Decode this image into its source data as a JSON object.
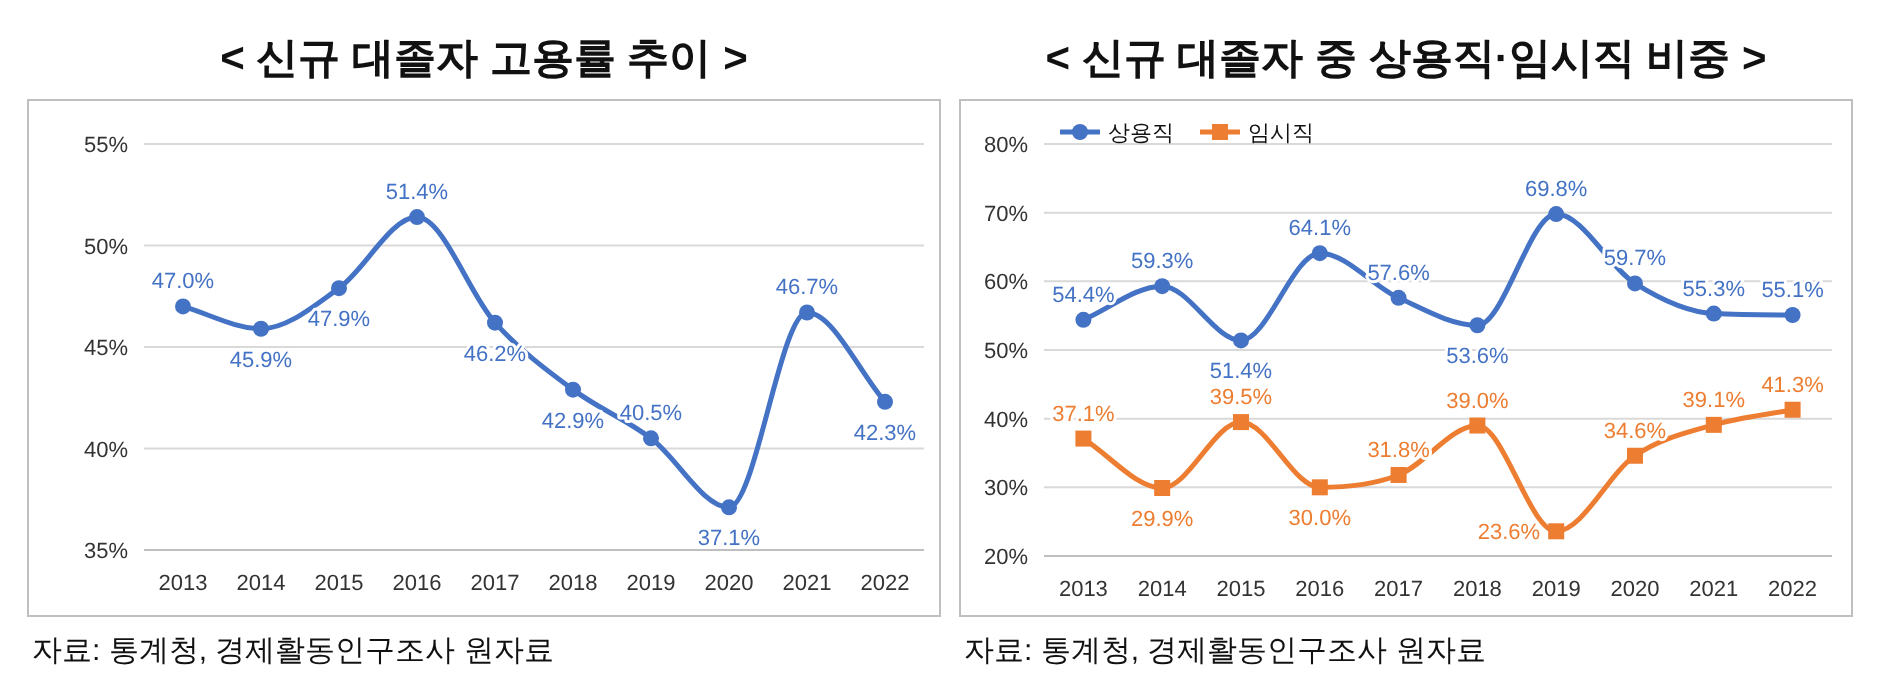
{
  "chart_data": [
    {
      "type": "line",
      "title": "< 신규 대졸자 고용률 추이 >",
      "categories": [
        "2013",
        "2014",
        "2015",
        "2016",
        "2017",
        "2018",
        "2019",
        "2020",
        "2021",
        "2022"
      ],
      "series": [
        {
          "color": "#4472c4",
          "values": [
            47.0,
            45.9,
            47.9,
            51.4,
            46.2,
            42.9,
            40.5,
            37.1,
            46.7,
            42.3
          ],
          "value_labels": [
            "47.0%",
            "45.9%",
            "47.9%",
            "51.4%",
            "46.2%",
            "42.9%",
            "40.5%",
            "37.1%",
            "46.7%",
            "42.3%"
          ]
        }
      ],
      "ylim": [
        35,
        55
      ],
      "yticks": [
        {
          "value": 35,
          "label": "35%"
        },
        {
          "value": 40,
          "label": "40%"
        },
        {
          "value": 45,
          "label": "45%"
        },
        {
          "value": 50,
          "label": "50%"
        },
        {
          "value": 55,
          "label": "55%"
        }
      ],
      "grid": "y",
      "marker": "circle",
      "annotations": [
        "자료: 통계청, 경제활동인구조사 원자료"
      ]
    },
    {
      "type": "line",
      "title": "< 신규 대졸자 중 상용직·임시직 비중 >",
      "categories": [
        "2013",
        "2014",
        "2015",
        "2016",
        "2017",
        "2018",
        "2019",
        "2020",
        "2021",
        "2022"
      ],
      "series": [
        {
          "name": "상용직",
          "color": "#4472c4",
          "marker": "circle",
          "values": [
            54.4,
            59.3,
            51.4,
            64.1,
            57.6,
            53.6,
            69.8,
            59.7,
            55.3,
            55.1
          ],
          "value_labels": [
            "54.4%",
            "59.3%",
            "51.4%",
            "64.1%",
            "57.6%",
            "53.6%",
            "69.8%",
            "59.7%",
            "55.3%",
            "55.1%"
          ]
        },
        {
          "name": "임시직",
          "color": "#ed7d31",
          "marker": "square",
          "values": [
            37.1,
            29.9,
            39.5,
            30.0,
            31.8,
            39.0,
            23.6,
            34.6,
            39.1,
            41.3
          ],
          "value_labels": [
            "37.1%",
            "29.9%",
            "39.5%",
            "30.0%",
            "31.8%",
            "39.0%",
            "23.6%",
            "34.6%",
            "39.1%",
            "41.3%"
          ]
        }
      ],
      "ylim": [
        20,
        80
      ],
      "yticks": [
        {
          "value": 20,
          "label": "20%"
        },
        {
          "value": 30,
          "label": "30%"
        },
        {
          "value": 40,
          "label": "40%"
        },
        {
          "value": 50,
          "label": "50%"
        },
        {
          "value": 60,
          "label": "60%"
        },
        {
          "value": 70,
          "label": "70%"
        },
        {
          "value": 80,
          "label": "80%"
        }
      ],
      "grid": "y",
      "legend": "top left",
      "annotations": [
        "자료: 통계청, 경제활동인구조사 원자료"
      ]
    }
  ]
}
